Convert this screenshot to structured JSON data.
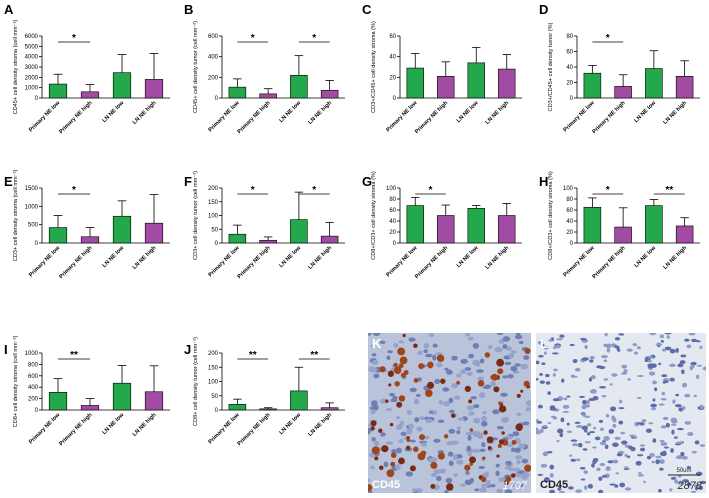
{
  "chart_data": [
    {
      "type": "bar",
      "panel": "A",
      "ylabel": "CD45+ cell density stroma (cell mm⁻²)",
      "categories": [
        "Primary NE low",
        "Primary NE high",
        "LN NE low",
        "LN NE high"
      ],
      "values": [
        1350,
        600,
        2450,
        1800
      ],
      "errors": [
        950,
        700,
        1750,
        2500
      ],
      "colors": [
        "#23a84b",
        "#a24ba3",
        "#23a84b",
        "#a24ba3"
      ],
      "ylim": [
        0,
        6000
      ],
      "yticks": [
        0,
        1000,
        2000,
        3000,
        4000,
        5000,
        6000
      ],
      "significance": [
        {
          "from": 0,
          "to": 1,
          "label": "*"
        }
      ]
    },
    {
      "type": "bar",
      "panel": "B",
      "ylabel": "CD45+ cell density tumor (cell mm⁻²)",
      "categories": [
        "Primary NE low",
        "Primary NE high",
        "LN NE low",
        "LN NE high"
      ],
      "values": [
        105,
        40,
        220,
        75
      ],
      "errors": [
        80,
        50,
        190,
        95
      ],
      "colors": [
        "#23a84b",
        "#a24ba3",
        "#23a84b",
        "#a24ba3"
      ],
      "ylim": [
        0,
        600
      ],
      "yticks": [
        0,
        200,
        400,
        600
      ],
      "significance": [
        {
          "from": 0,
          "to": 1,
          "label": "*"
        },
        {
          "from": 2,
          "to": 3,
          "label": "*"
        }
      ]
    },
    {
      "type": "bar",
      "panel": "C",
      "ylabel": "CD3+/CD45+ cell density stroma (%)",
      "categories": [
        "Primary NE low",
        "Primary NE high",
        "LN NE low",
        "LN NE high"
      ],
      "values": [
        29,
        21,
        34,
        28
      ],
      "errors": [
        14,
        14,
        15,
        14
      ],
      "colors": [
        "#23a84b",
        "#a24ba3",
        "#23a84b",
        "#a24ba3"
      ],
      "ylim": [
        0,
        60
      ],
      "yticks": [
        0,
        20,
        40,
        60
      ],
      "significance": []
    },
    {
      "type": "bar",
      "panel": "D",
      "ylabel": "CD3+/CD45+ cell density tumor (%)",
      "categories": [
        "Primary NE low",
        "Primary NE high",
        "LN NE low",
        "LN NE high"
      ],
      "values": [
        32,
        15,
        38,
        28
      ],
      "errors": [
        10,
        15,
        23,
        20
      ],
      "colors": [
        "#23a84b",
        "#a24ba3",
        "#23a84b",
        "#a24ba3"
      ],
      "ylim": [
        0,
        80
      ],
      "yticks": [
        0,
        20,
        40,
        60,
        80
      ],
      "significance": [
        {
          "from": 0,
          "to": 1,
          "label": "*"
        }
      ]
    },
    {
      "type": "bar",
      "panel": "E",
      "ylabel": "CD3+ cell density stroma (cell mm⁻²)",
      "categories": [
        "Primary NE low",
        "Primary NE high",
        "LN NE low",
        "LN NE high"
      ],
      "values": [
        420,
        170,
        730,
        540
      ],
      "errors": [
        330,
        250,
        420,
        780
      ],
      "colors": [
        "#23a84b",
        "#a24ba3",
        "#23a84b",
        "#a24ba3"
      ],
      "ylim": [
        0,
        1500
      ],
      "yticks": [
        0,
        500,
        1000,
        1500
      ],
      "significance": [
        {
          "from": 0,
          "to": 1,
          "label": "*"
        }
      ]
    },
    {
      "type": "bar",
      "panel": "F",
      "ylabel": "CD3+ cell density tumor (cell mm⁻²)",
      "categories": [
        "Primary NE low",
        "Primary NE high",
        "LN NE low",
        "LN NE high"
      ],
      "values": [
        32,
        10,
        85,
        25
      ],
      "errors": [
        33,
        12,
        100,
        50
      ],
      "colors": [
        "#23a84b",
        "#a24ba3",
        "#23a84b",
        "#a24ba3"
      ],
      "ylim": [
        0,
        200
      ],
      "yticks": [
        0,
        50,
        100,
        150,
        200
      ],
      "significance": [
        {
          "from": 0,
          "to": 1,
          "label": "*"
        },
        {
          "from": 2,
          "to": 3,
          "label": "*"
        }
      ]
    },
    {
      "type": "bar",
      "panel": "G",
      "ylabel": "CD8+/CD3+ cell density stroma (%)",
      "categories": [
        "Primary NE low",
        "Primary NE high",
        "LN NE low",
        "LN NE high"
      ],
      "values": [
        68,
        50,
        63,
        50
      ],
      "errors": [
        15,
        19,
        5,
        22
      ],
      "colors": [
        "#23a84b",
        "#a24ba3",
        "#23a84b",
        "#a24ba3"
      ],
      "ylim": [
        0,
        100
      ],
      "yticks": [
        0,
        20,
        40,
        60,
        80,
        100
      ],
      "significance": [
        {
          "from": 0,
          "to": 1,
          "label": "*"
        }
      ]
    },
    {
      "type": "bar",
      "panel": "H",
      "ylabel": "CD8+/CD3+ cell density stroma (%)",
      "categories": [
        "Primary NE low",
        "Primary NE high",
        "LN NE low",
        "LN NE high"
      ],
      "values": [
        65,
        29,
        68,
        31
      ],
      "errors": [
        17,
        35,
        11,
        15
      ],
      "colors": [
        "#23a84b",
        "#a24ba3",
        "#23a84b",
        "#a24ba3"
      ],
      "ylim": [
        0,
        100
      ],
      "yticks": [
        0,
        20,
        40,
        60,
        80,
        100
      ],
      "significance": [
        {
          "from": 0,
          "to": 1,
          "label": "*"
        },
        {
          "from": 2,
          "to": 3,
          "label": "**"
        }
      ]
    },
    {
      "type": "bar",
      "panel": "I",
      "ylabel": "CD8+ cell density stroma (cell mm⁻²)",
      "categories": [
        "Primary NE low",
        "Primary NE high",
        "LN NE low",
        "LN NE high"
      ],
      "values": [
        310,
        80,
        470,
        320
      ],
      "errors": [
        240,
        120,
        310,
        455
      ],
      "colors": [
        "#23a84b",
        "#a24ba3",
        "#23a84b",
        "#a24ba3"
      ],
      "ylim": [
        0,
        1000
      ],
      "yticks": [
        0,
        200,
        400,
        600,
        800,
        1000
      ],
      "significance": [
        {
          "from": 0,
          "to": 1,
          "label": "**"
        }
      ]
    },
    {
      "type": "bar",
      "panel": "J",
      "ylabel": "CD8+ cell density tumor (cell mm⁻²)",
      "categories": [
        "Primary NE low",
        "Primary NE high",
        "LN NE low",
        "LN NE high"
      ],
      "values": [
        20,
        4,
        67,
        8
      ],
      "errors": [
        18,
        4,
        83,
        17
      ],
      "colors": [
        "#23a84b",
        "#a24ba3",
        "#23a84b",
        "#a24ba3"
      ],
      "ylim": [
        0,
        200
      ],
      "yticks": [
        0,
        50,
        100,
        150,
        200
      ],
      "significance": [
        {
          "from": 0,
          "to": 1,
          "label": "**"
        },
        {
          "from": 2,
          "to": 3,
          "label": "**"
        }
      ]
    }
  ],
  "images": [
    {
      "label": "K",
      "stain": "CD45",
      "id": "1707"
    },
    {
      "label": "L",
      "stain": "CD45",
      "scale": "50um",
      "id": "2878"
    }
  ]
}
